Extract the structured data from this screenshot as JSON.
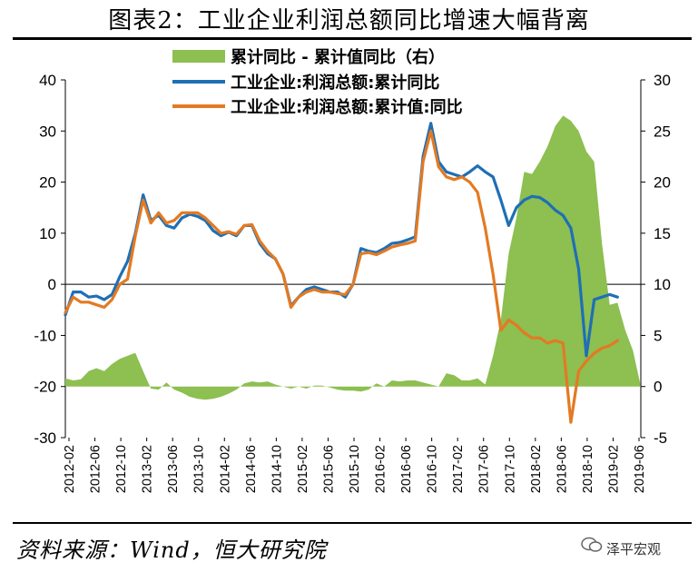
{
  "title": "图表2：工业企业利润总额同比增速大幅背离",
  "source": "资料来源：Wind，恒大研究院",
  "brand": "泽平宏观",
  "colors": {
    "area": "#8dbf51",
    "cum_yoy": "#1f6fb5",
    "cum_val_yoy": "#e37a22"
  },
  "chart_data": {
    "type": "line",
    "legend_position": "top-center",
    "left_axis": {
      "ylim": [
        -30,
        40
      ],
      "ticks": [
        "-30",
        "-20",
        "-10",
        "0",
        "10",
        "20",
        "30",
        "40"
      ]
    },
    "right_axis": {
      "ylim": [
        -5,
        30
      ],
      "ticks": [
        "-5",
        "0",
        "5",
        "10",
        "15",
        "20",
        "25",
        "30"
      ]
    },
    "x_tick_labels": [
      "2012-02",
      "2012-06",
      "2012-10",
      "2013-02",
      "2013-06",
      "2013-10",
      "2014-02",
      "2014-06",
      "2014-10",
      "2015-02",
      "2015-06",
      "2015-10",
      "2016-02",
      "2016-06",
      "2016-10",
      "2017-02",
      "2017-06",
      "2017-10",
      "2018-02",
      "2018-06",
      "2018-10",
      "2019-02",
      "2019-06"
    ],
    "series": [
      {
        "name": "累计同比 - 累计值同比（右）",
        "kind": "area",
        "axis": "right",
        "points": [
          [
            0,
            0.8
          ],
          [
            1,
            0.6
          ],
          [
            2,
            0.7
          ],
          [
            3,
            1.5
          ],
          [
            4,
            1.8
          ],
          [
            5,
            1.5
          ],
          [
            6,
            2.2
          ],
          [
            7,
            2.7
          ],
          [
            8,
            3.0
          ],
          [
            9,
            3.3
          ],
          [
            10,
            1.5
          ],
          [
            11,
            -0.2
          ],
          [
            12,
            -0.3
          ],
          [
            13,
            0.4
          ],
          [
            14,
            -0.3
          ],
          [
            15,
            -0.6
          ],
          [
            16,
            -1.0
          ],
          [
            17,
            -1.2
          ],
          [
            18,
            -1.3
          ],
          [
            19,
            -1.2
          ],
          [
            20,
            -1.0
          ],
          [
            21,
            -0.7
          ],
          [
            22,
            -0.3
          ],
          [
            23,
            0.3
          ],
          [
            24,
            0.5
          ],
          [
            25,
            0.4
          ],
          [
            26,
            0.5
          ],
          [
            27,
            0.2
          ],
          [
            28,
            0.0
          ],
          [
            29,
            -0.2
          ],
          [
            30,
            0.0
          ],
          [
            31,
            -0.2
          ],
          [
            32,
            0.1
          ],
          [
            33,
            0.1
          ],
          [
            34,
            -0.1
          ],
          [
            35,
            -0.3
          ],
          [
            36,
            -0.4
          ],
          [
            37,
            -0.4
          ],
          [
            38,
            -0.5
          ],
          [
            39,
            -0.3
          ],
          [
            40,
            0.3
          ],
          [
            41,
            0.0
          ],
          [
            42,
            0.6
          ],
          [
            43,
            0.5
          ],
          [
            44,
            0.6
          ],
          [
            45,
            0.6
          ],
          [
            46,
            0.4
          ],
          [
            47,
            0.2
          ],
          [
            48,
            0.0
          ],
          [
            49,
            1.3
          ],
          [
            50,
            1.1
          ],
          [
            51,
            0.6
          ],
          [
            52,
            0.6
          ],
          [
            53,
            0.8
          ],
          [
            54,
            0.2
          ],
          [
            55,
            3.0
          ],
          [
            56,
            6.5
          ],
          [
            57,
            13.0
          ],
          [
            58,
            16.5
          ],
          [
            59,
            21.0
          ],
          [
            60,
            20.8
          ],
          [
            61,
            22.0
          ],
          [
            62,
            23.5
          ],
          [
            63,
            25.5
          ],
          [
            64,
            26.5
          ],
          [
            65,
            26.0
          ],
          [
            66,
            25.0
          ],
          [
            67,
            23.0
          ],
          [
            68,
            22.0
          ],
          [
            69,
            14.0
          ],
          [
            70,
            8.0
          ],
          [
            71,
            8.2
          ],
          [
            72,
            5.5
          ],
          [
            73,
            3.5
          ],
          [
            74,
            0.0
          ]
        ]
      },
      {
        "name": "工业企业:利润总额:累计同比",
        "kind": "line",
        "axis": "left",
        "points": [
          [
            0,
            -6.0
          ],
          [
            1,
            -1.5
          ],
          [
            2,
            -1.5
          ],
          [
            3,
            -2.5
          ],
          [
            4,
            -2.3
          ],
          [
            5,
            -3.0
          ],
          [
            6,
            -2.0
          ],
          [
            7,
            1.5
          ],
          [
            8,
            4.5
          ],
          [
            9,
            10.0
          ],
          [
            10,
            17.5
          ],
          [
            11,
            12.5
          ],
          [
            12,
            13.5
          ],
          [
            13,
            11.5
          ],
          [
            14,
            11.0
          ],
          [
            15,
            13.0
          ],
          [
            16,
            13.7
          ],
          [
            17,
            13.3
          ],
          [
            18,
            12.5
          ],
          [
            19,
            10.5
          ],
          [
            20,
            9.5
          ],
          [
            21,
            10.2
          ],
          [
            22,
            9.5
          ],
          [
            23,
            11.5
          ],
          [
            24,
            11.5
          ],
          [
            25,
            8.0
          ],
          [
            26,
            6.0
          ],
          [
            27,
            5.0
          ],
          [
            28,
            2.0
          ],
          [
            29,
            -4.2
          ],
          [
            30,
            -2.5
          ],
          [
            31,
            -1.0
          ],
          [
            32,
            -0.5
          ],
          [
            33,
            -1.0
          ],
          [
            34,
            -1.5
          ],
          [
            35,
            -1.5
          ],
          [
            36,
            -2.5
          ],
          [
            37,
            0.0
          ],
          [
            38,
            7.0
          ],
          [
            39,
            6.5
          ],
          [
            40,
            6.2
          ],
          [
            41,
            7.0
          ],
          [
            42,
            8.0
          ],
          [
            43,
            8.2
          ],
          [
            44,
            8.7
          ],
          [
            45,
            9.3
          ],
          [
            46,
            25.0
          ],
          [
            47,
            31.5
          ],
          [
            48,
            24.0
          ],
          [
            49,
            22.0
          ],
          [
            50,
            21.5
          ],
          [
            51,
            21.0
          ],
          [
            52,
            22.0
          ],
          [
            53,
            23.2
          ],
          [
            54,
            22.0
          ],
          [
            55,
            21.0
          ],
          [
            56,
            16.5
          ],
          [
            57,
            11.5
          ],
          [
            58,
            15.0
          ],
          [
            59,
            16.5
          ],
          [
            60,
            17.2
          ],
          [
            61,
            17.0
          ],
          [
            62,
            16.0
          ],
          [
            63,
            14.5
          ],
          [
            64,
            13.5
          ],
          [
            65,
            11.0
          ],
          [
            66,
            3.0
          ],
          [
            67,
            -14.0
          ],
          [
            68,
            -3.0
          ],
          [
            69,
            -2.5
          ],
          [
            70,
            -2.0
          ],
          [
            71,
            -2.5
          ]
        ]
      },
      {
        "name": "工业企业:利润总额:累计值:同比",
        "kind": "line",
        "axis": "left",
        "points": [
          [
            0,
            -5.5
          ],
          [
            1,
            -2.5
          ],
          [
            2,
            -3.5
          ],
          [
            3,
            -3.5
          ],
          [
            4,
            -4.0
          ],
          [
            5,
            -4.5
          ],
          [
            6,
            -3.0
          ],
          [
            7,
            0.0
          ],
          [
            8,
            1.0
          ],
          [
            9,
            9.5
          ],
          [
            10,
            16.5
          ],
          [
            11,
            12.0
          ],
          [
            12,
            14.0
          ],
          [
            13,
            12.0
          ],
          [
            14,
            12.5
          ],
          [
            15,
            14.0
          ],
          [
            16,
            14.0
          ],
          [
            17,
            14.0
          ],
          [
            18,
            13.0
          ],
          [
            19,
            11.5
          ],
          [
            20,
            10.0
          ],
          [
            21,
            10.3
          ],
          [
            22,
            9.8
          ],
          [
            23,
            11.5
          ],
          [
            24,
            11.7
          ],
          [
            25,
            8.5
          ],
          [
            26,
            6.5
          ],
          [
            27,
            5.0
          ],
          [
            28,
            2.0
          ],
          [
            29,
            -4.5
          ],
          [
            30,
            -2.5
          ],
          [
            31,
            -1.5
          ],
          [
            32,
            -1.0
          ],
          [
            33,
            -1.5
          ],
          [
            34,
            -1.5
          ],
          [
            35,
            -1.8
          ],
          [
            36,
            -2.0
          ],
          [
            37,
            0.0
          ],
          [
            38,
            6.0
          ],
          [
            39,
            6.2
          ],
          [
            40,
            5.8
          ],
          [
            41,
            6.5
          ],
          [
            42,
            7.3
          ],
          [
            43,
            7.7
          ],
          [
            44,
            8.0
          ],
          [
            45,
            8.5
          ],
          [
            46,
            24.0
          ],
          [
            47,
            30.0
          ],
          [
            48,
            23.0
          ],
          [
            49,
            21.0
          ],
          [
            50,
            20.5
          ],
          [
            51,
            21.0
          ],
          [
            52,
            20.0
          ],
          [
            53,
            18.0
          ],
          [
            54,
            11.0
          ],
          [
            55,
            2.0
          ],
          [
            56,
            -9.0
          ],
          [
            57,
            -7.0
          ],
          [
            58,
            -8.0
          ],
          [
            59,
            -9.5
          ],
          [
            60,
            -10.5
          ],
          [
            61,
            -10.5
          ],
          [
            62,
            -11.5
          ],
          [
            63,
            -11.0
          ],
          [
            64,
            -11.5
          ],
          [
            65,
            -27.0
          ],
          [
            66,
            -17.0
          ],
          [
            67,
            -15.0
          ],
          [
            68,
            -13.5
          ],
          [
            69,
            -12.5
          ],
          [
            70,
            -12.0
          ],
          [
            71,
            -11.0
          ]
        ]
      }
    ]
  }
}
